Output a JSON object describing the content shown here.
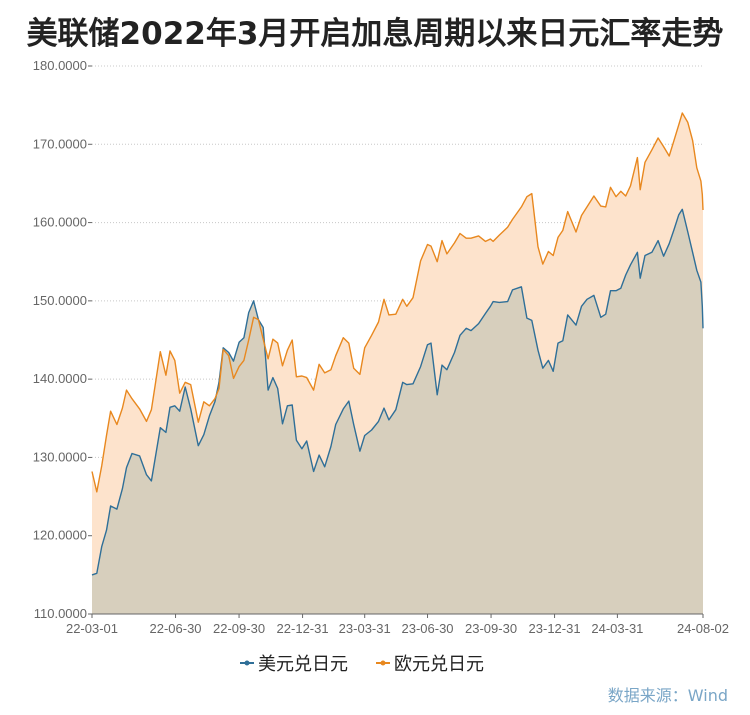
{
  "chart_data": {
    "type": "area",
    "title": "美联储2022年3月开启加息周期以来日元汇率走势",
    "source": "数据来源：Wind",
    "xlabel": "",
    "ylabel": "",
    "ylim": [
      110,
      180
    ],
    "yticks": [
      "110.0000",
      "120.0000",
      "130.0000",
      "140.0000",
      "150.0000",
      "160.0000",
      "170.0000",
      "180.0000"
    ],
    "x_ticks": [
      "22-03-01",
      "22-06-30",
      "22-09-30",
      "22-12-31",
      "23-03-31",
      "23-06-30",
      "23-09-30",
      "23-12-31",
      "24-03-31",
      "24-08-02"
    ],
    "x_range": [
      "22-03-01",
      "24-08-02"
    ],
    "grid": true,
    "legend_position": "bottom",
    "series": [
      {
        "name": "美元兑日元",
        "color": "#2f6f98",
        "fill": "#d7cfbd",
        "points": [
          [
            "22-03-01",
            115.0
          ],
          [
            "22-03-08",
            115.2
          ],
          [
            "22-03-15",
            118.6
          ],
          [
            "22-03-22",
            120.7
          ],
          [
            "22-03-28",
            123.8
          ],
          [
            "22-04-06",
            123.4
          ],
          [
            "22-04-14",
            126.0
          ],
          [
            "22-04-20",
            128.7
          ],
          [
            "22-04-28",
            130.5
          ],
          [
            "22-05-09",
            130.2
          ],
          [
            "22-05-19",
            127.8
          ],
          [
            "22-05-26",
            127.0
          ],
          [
            "22-06-08",
            133.8
          ],
          [
            "22-06-16",
            133.2
          ],
          [
            "22-06-22",
            136.4
          ],
          [
            "22-06-29",
            136.6
          ],
          [
            "22-07-06",
            135.9
          ],
          [
            "22-07-14",
            139.0
          ],
          [
            "22-07-22",
            136.2
          ],
          [
            "22-08-02",
            131.5
          ],
          [
            "22-08-10",
            132.9
          ],
          [
            "22-08-18",
            135.3
          ],
          [
            "22-08-26",
            137.1
          ],
          [
            "22-09-01",
            139.6
          ],
          [
            "22-09-07",
            144.0
          ],
          [
            "22-09-15",
            143.4
          ],
          [
            "22-09-22",
            142.3
          ],
          [
            "22-09-30",
            144.7
          ],
          [
            "22-10-07",
            145.3
          ],
          [
            "22-10-14",
            148.5
          ],
          [
            "22-10-21",
            150.0
          ],
          [
            "22-10-28",
            147.6
          ],
          [
            "22-11-04",
            146.6
          ],
          [
            "22-11-11",
            138.6
          ],
          [
            "22-11-18",
            140.2
          ],
          [
            "22-11-25",
            138.8
          ],
          [
            "22-12-02",
            134.3
          ],
          [
            "22-12-09",
            136.6
          ],
          [
            "22-12-16",
            136.7
          ],
          [
            "22-12-22",
            132.2
          ],
          [
            "22-12-30",
            131.1
          ],
          [
            "23-01-06",
            132.1
          ],
          [
            "23-01-16",
            128.2
          ],
          [
            "23-01-24",
            130.3
          ],
          [
            "23-02-01",
            128.8
          ],
          [
            "23-02-10",
            131.4
          ],
          [
            "23-02-17",
            134.2
          ],
          [
            "23-02-28",
            136.2
          ],
          [
            "23-03-08",
            137.2
          ],
          [
            "23-03-15",
            134.2
          ],
          [
            "23-03-24",
            130.8
          ],
          [
            "23-03-31",
            132.8
          ],
          [
            "23-04-10",
            133.5
          ],
          [
            "23-04-20",
            134.6
          ],
          [
            "23-04-28",
            136.3
          ],
          [
            "23-05-05",
            134.8
          ],
          [
            "23-05-15",
            136.1
          ],
          [
            "23-05-25",
            139.6
          ],
          [
            "23-05-31",
            139.3
          ],
          [
            "23-06-09",
            139.4
          ],
          [
            "23-06-20",
            141.6
          ],
          [
            "23-06-30",
            144.4
          ],
          [
            "23-07-05",
            144.6
          ],
          [
            "23-07-14",
            138.0
          ],
          [
            "23-07-21",
            141.8
          ],
          [
            "23-07-28",
            141.2
          ],
          [
            "23-08-08",
            143.4
          ],
          [
            "23-08-16",
            145.6
          ],
          [
            "23-08-25",
            146.5
          ],
          [
            "23-09-01",
            146.2
          ],
          [
            "23-09-12",
            147.1
          ],
          [
            "23-09-22",
            148.4
          ],
          [
            "23-09-29",
            149.3
          ],
          [
            "23-10-03",
            149.9
          ],
          [
            "23-10-12",
            149.8
          ],
          [
            "23-10-24",
            149.9
          ],
          [
            "23-10-31",
            151.4
          ],
          [
            "23-11-13",
            151.8
          ],
          [
            "23-11-21",
            147.8
          ],
          [
            "23-11-28",
            147.5
          ],
          [
            "23-12-07",
            143.7
          ],
          [
            "23-12-14",
            141.4
          ],
          [
            "23-12-22",
            142.4
          ],
          [
            "23-12-29",
            141.0
          ],
          [
            "24-01-05",
            144.6
          ],
          [
            "24-01-12",
            144.9
          ],
          [
            "24-01-19",
            148.2
          ],
          [
            "24-01-31",
            146.9
          ],
          [
            "24-02-08",
            149.3
          ],
          [
            "24-02-16",
            150.2
          ],
          [
            "24-02-26",
            150.7
          ],
          [
            "24-03-07",
            147.9
          ],
          [
            "24-03-14",
            148.3
          ],
          [
            "24-03-21",
            151.3
          ],
          [
            "24-03-29",
            151.3
          ],
          [
            "24-04-05",
            151.6
          ],
          [
            "24-04-12",
            153.3
          ],
          [
            "24-04-19",
            154.6
          ],
          [
            "24-04-29",
            156.2
          ],
          [
            "24-05-03",
            152.9
          ],
          [
            "24-05-10",
            155.8
          ],
          [
            "24-05-20",
            156.2
          ],
          [
            "24-05-29",
            157.7
          ],
          [
            "24-06-06",
            155.7
          ],
          [
            "24-06-14",
            157.3
          ],
          [
            "24-06-21",
            159.1
          ],
          [
            "24-06-28",
            161.0
          ],
          [
            "24-07-03",
            161.7
          ],
          [
            "24-07-11",
            158.8
          ],
          [
            "24-07-18",
            156.2
          ],
          [
            "24-07-24",
            153.9
          ],
          [
            "24-07-30",
            152.4
          ],
          [
            "24-08-01",
            149.3
          ],
          [
            "24-08-02",
            146.5
          ]
        ]
      },
      {
        "name": "欧元兑日元",
        "color": "#e8881f",
        "fill": "#fde3cc",
        "points": [
          [
            "22-03-01",
            128.2
          ],
          [
            "22-03-08",
            125.6
          ],
          [
            "22-03-15",
            128.9
          ],
          [
            "22-03-22",
            132.8
          ],
          [
            "22-03-28",
            135.9
          ],
          [
            "22-04-06",
            134.2
          ],
          [
            "22-04-14",
            136.3
          ],
          [
            "22-04-20",
            138.6
          ],
          [
            "22-04-28",
            137.5
          ],
          [
            "22-05-09",
            136.2
          ],
          [
            "22-05-19",
            134.6
          ],
          [
            "22-05-26",
            136.1
          ],
          [
            "22-06-08",
            143.5
          ],
          [
            "22-06-16",
            140.5
          ],
          [
            "22-06-22",
            143.6
          ],
          [
            "22-06-29",
            142.4
          ],
          [
            "22-07-06",
            138.2
          ],
          [
            "22-07-14",
            139.6
          ],
          [
            "22-07-22",
            139.3
          ],
          [
            "22-08-02",
            134.5
          ],
          [
            "22-08-10",
            137.1
          ],
          [
            "22-08-18",
            136.6
          ],
          [
            "22-08-26",
            137.5
          ],
          [
            "22-09-01",
            138.8
          ],
          [
            "22-09-07",
            143.8
          ],
          [
            "22-09-15",
            143.0
          ],
          [
            "22-09-22",
            140.1
          ],
          [
            "22-09-30",
            141.6
          ],
          [
            "22-10-07",
            142.4
          ],
          [
            "22-10-14",
            145.0
          ],
          [
            "22-10-21",
            147.9
          ],
          [
            "22-10-28",
            147.6
          ],
          [
            "22-11-04",
            145.1
          ],
          [
            "22-11-11",
            142.6
          ],
          [
            "22-11-18",
            145.1
          ],
          [
            "22-11-25",
            144.6
          ],
          [
            "22-12-02",
            141.7
          ],
          [
            "22-12-09",
            143.7
          ],
          [
            "22-12-16",
            145.0
          ],
          [
            "22-12-22",
            140.3
          ],
          [
            "22-12-30",
            140.4
          ],
          [
            "23-01-06",
            140.2
          ],
          [
            "23-01-16",
            138.6
          ],
          [
            "23-01-24",
            141.9
          ],
          [
            "23-02-01",
            140.8
          ],
          [
            "23-02-10",
            141.2
          ],
          [
            "23-02-17",
            143.0
          ],
          [
            "23-02-28",
            145.3
          ],
          [
            "23-03-08",
            144.6
          ],
          [
            "23-03-15",
            141.4
          ],
          [
            "23-03-24",
            140.6
          ],
          [
            "23-03-31",
            144.0
          ],
          [
            "23-04-10",
            145.6
          ],
          [
            "23-04-20",
            147.3
          ],
          [
            "23-04-28",
            150.2
          ],
          [
            "23-05-05",
            148.2
          ],
          [
            "23-05-15",
            148.3
          ],
          [
            "23-05-25",
            150.2
          ],
          [
            "23-05-31",
            149.3
          ],
          [
            "23-06-09",
            150.4
          ],
          [
            "23-06-20",
            155.1
          ],
          [
            "23-06-30",
            157.2
          ],
          [
            "23-07-05",
            157.0
          ],
          [
            "23-07-14",
            155.0
          ],
          [
            "23-07-21",
            157.7
          ],
          [
            "23-07-28",
            156.0
          ],
          [
            "23-08-08",
            157.4
          ],
          [
            "23-08-16",
            158.6
          ],
          [
            "23-08-25",
            158.0
          ],
          [
            "23-09-01",
            158.0
          ],
          [
            "23-09-12",
            158.3
          ],
          [
            "23-09-22",
            157.6
          ],
          [
            "23-09-29",
            157.9
          ],
          [
            "23-10-03",
            157.6
          ],
          [
            "23-10-12",
            158.4
          ],
          [
            "23-10-24",
            159.4
          ],
          [
            "23-10-31",
            160.4
          ],
          [
            "23-11-13",
            162.0
          ],
          [
            "23-11-21",
            163.3
          ],
          [
            "23-11-28",
            163.7
          ],
          [
            "23-12-07",
            156.9
          ],
          [
            "23-12-14",
            154.7
          ],
          [
            "23-12-22",
            156.3
          ],
          [
            "23-12-29",
            155.8
          ],
          [
            "24-01-05",
            158.1
          ],
          [
            "24-01-12",
            159.0
          ],
          [
            "24-01-19",
            161.4
          ],
          [
            "24-01-31",
            158.8
          ],
          [
            "24-02-08",
            160.9
          ],
          [
            "24-02-16",
            162.0
          ],
          [
            "24-02-26",
            163.4
          ],
          [
            "24-03-07",
            162.1
          ],
          [
            "24-03-14",
            162.0
          ],
          [
            "24-03-21",
            164.5
          ],
          [
            "24-03-29",
            163.3
          ],
          [
            "24-04-05",
            164.0
          ],
          [
            "24-04-12",
            163.4
          ],
          [
            "24-04-19",
            164.7
          ],
          [
            "24-04-29",
            168.3
          ],
          [
            "24-05-03",
            164.2
          ],
          [
            "24-05-10",
            167.7
          ],
          [
            "24-05-20",
            169.3
          ],
          [
            "24-05-29",
            170.8
          ],
          [
            "24-06-06",
            169.7
          ],
          [
            "24-06-14",
            168.5
          ],
          [
            "24-06-21",
            170.5
          ],
          [
            "24-06-28",
            172.5
          ],
          [
            "24-07-03",
            174.0
          ],
          [
            "24-07-11",
            172.8
          ],
          [
            "24-07-18",
            170.5
          ],
          [
            "24-07-24",
            167.0
          ],
          [
            "24-07-30",
            165.3
          ],
          [
            "24-08-01",
            163.6
          ],
          [
            "24-08-02",
            161.6
          ]
        ]
      }
    ]
  }
}
